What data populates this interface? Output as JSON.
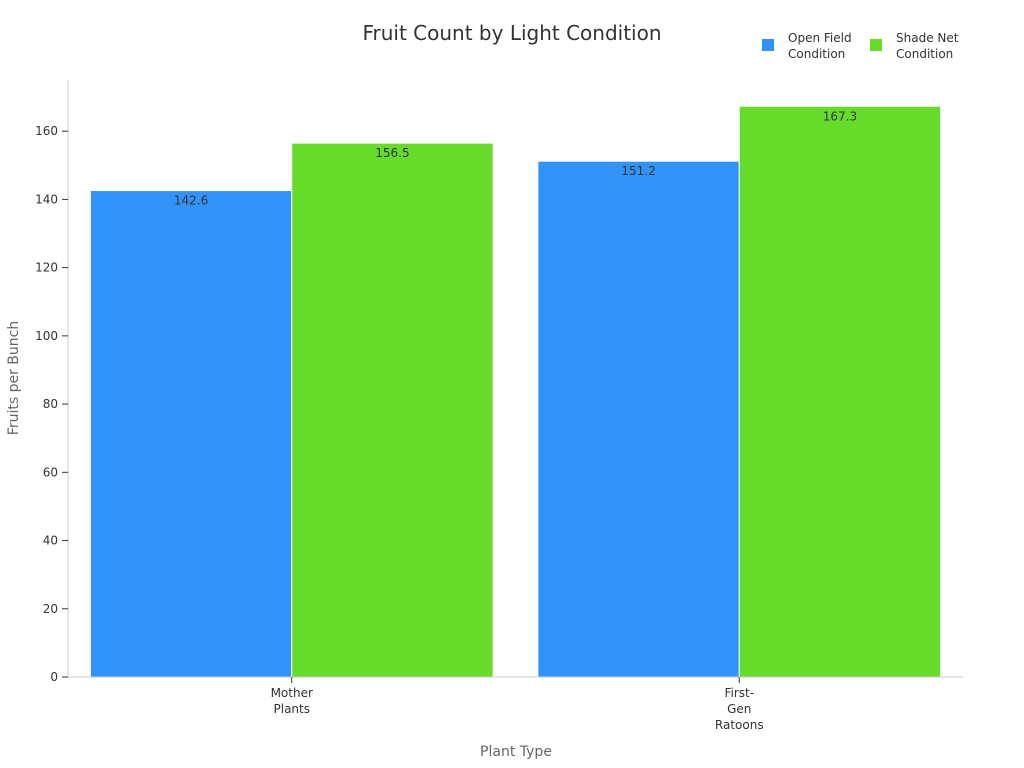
{
  "chart_data": {
    "type": "bar",
    "title": "Fruit Count by Light Condition",
    "xlabel": "Plant Type",
    "ylabel": "Fruits per Bunch",
    "categories": [
      [
        "Mother",
        "Plants"
      ],
      [
        "First-",
        "Gen",
        "Ratoons"
      ]
    ],
    "series": [
      {
        "name": [
          "Open Field",
          "Condition"
        ],
        "values": [
          142.6,
          151.2
        ],
        "color": "#3192f8"
      },
      {
        "name": [
          "Shade Net",
          "Condition"
        ],
        "values": [
          156.5,
          167.3
        ],
        "color": "#66db29"
      }
    ],
    "data_labels": [
      [
        "142.6",
        "151.2"
      ],
      [
        "156.5",
        "167.3"
      ]
    ],
    "ylim": [
      0,
      175
    ],
    "yticks": [
      0,
      20,
      40,
      60,
      80,
      100,
      120,
      140,
      160
    ],
    "grid": false,
    "legend": "top-right"
  }
}
